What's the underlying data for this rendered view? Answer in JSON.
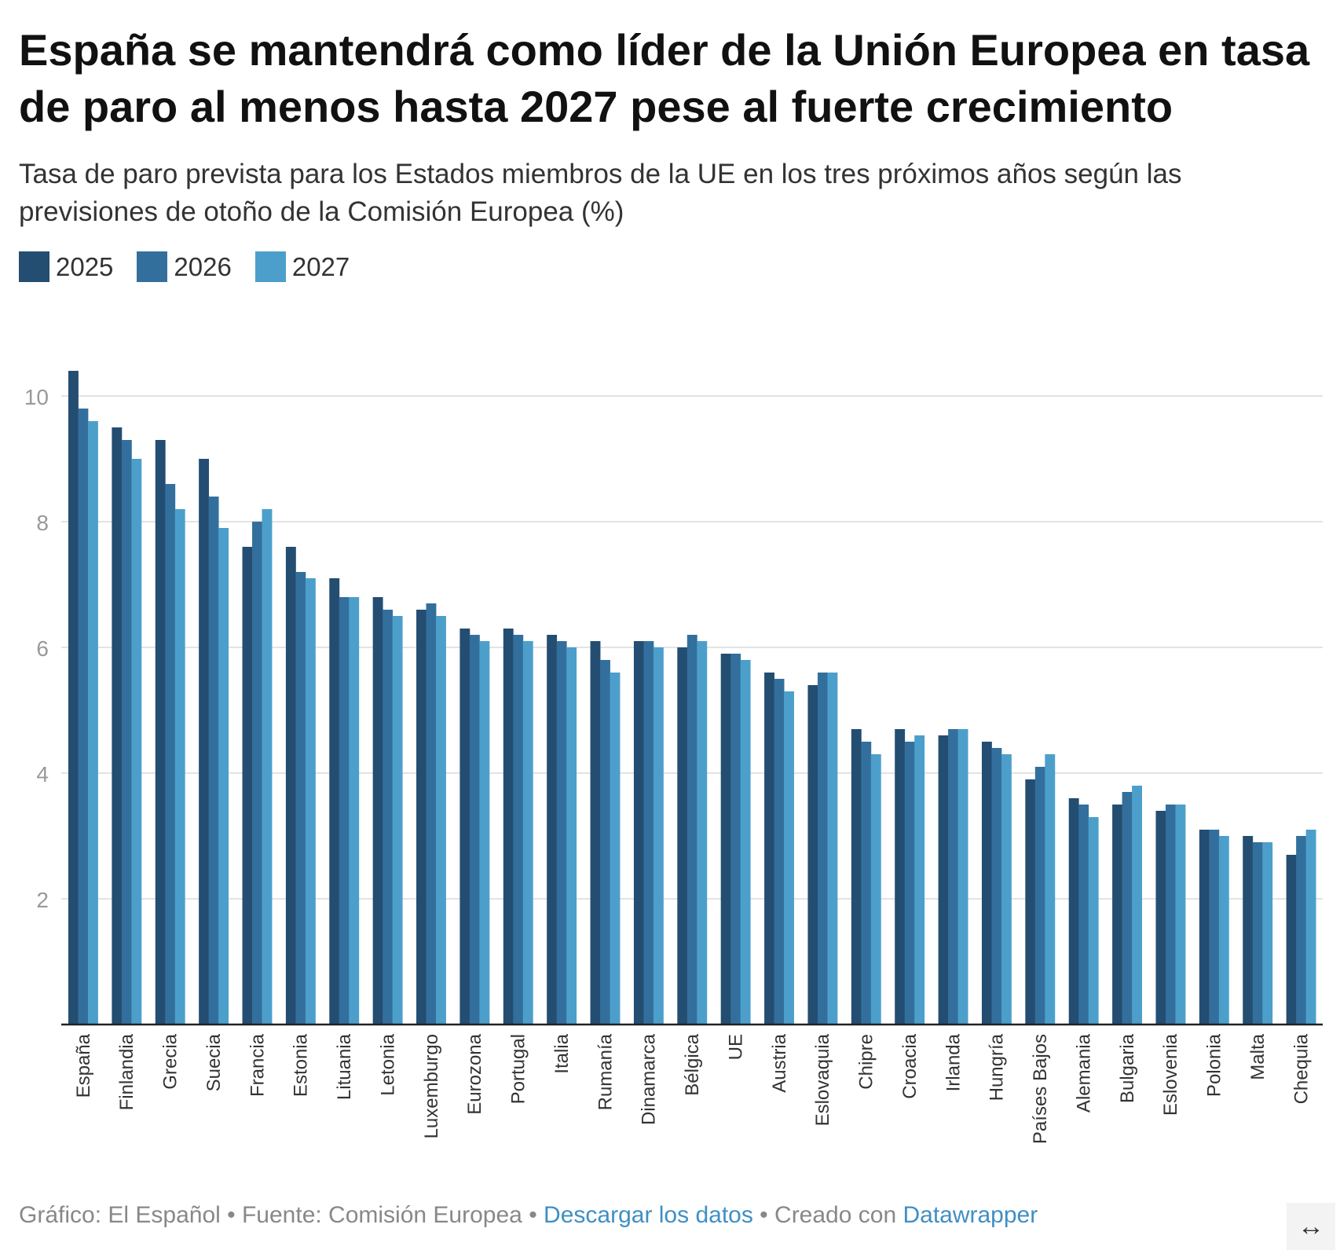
{
  "title": "España se mantendrá como líder de la Unión Europea en tasa de paro al menos hasta 2027 pese al fuerte crecimiento",
  "subtitle": "Tasa de paro prevista para los Estados miembros de la UE en los tres próximos años según las previsiones de otoño de la Comisión Europea (%)",
  "footer": {
    "credit": "Gráfico: El Español",
    "sep1": " • ",
    "source": "Fuente: Comisión Europea",
    "sep2": " • ",
    "download": "Descargar los datos",
    "sep3": " • ",
    "created": "Creado con ",
    "tool": "Datawrapper"
  },
  "expand_icon": "↔",
  "colors": {
    "2025": "#244d72",
    "2026": "#336f9d",
    "2027": "#4c9fcb",
    "grid": "#e3e3e3",
    "axis": "#222222",
    "tick": "#999999",
    "link": "#3f8fc4"
  },
  "chart_data": {
    "type": "bar",
    "categories": [
      "España",
      "Finlandia",
      "Grecia",
      "Suecia",
      "Francia",
      "Estonia",
      "Lituania",
      "Letonia",
      "Luxemburgo",
      "Eurozona",
      "Portugal",
      "Italia",
      "Rumanía",
      "Dinamarca",
      "Bélgica",
      "UE",
      "Austria",
      "Eslovaquia",
      "Chipre",
      "Croacia",
      "Irlanda",
      "Hungría",
      "Países Bajos",
      "Alemania",
      "Bulgaria",
      "Eslovenia",
      "Polonia",
      "Malta",
      "Chequia"
    ],
    "series": [
      {
        "name": "2025",
        "values": [
          10.4,
          9.5,
          9.3,
          9.0,
          7.6,
          7.6,
          7.1,
          6.8,
          6.6,
          6.3,
          6.3,
          6.2,
          6.1,
          6.1,
          6.0,
          5.9,
          5.6,
          5.4,
          4.7,
          4.7,
          4.6,
          4.5,
          3.9,
          3.6,
          3.5,
          3.4,
          3.1,
          3.0,
          2.7
        ]
      },
      {
        "name": "2026",
        "values": [
          9.8,
          9.3,
          8.6,
          8.4,
          8.0,
          7.2,
          6.8,
          6.6,
          6.7,
          6.2,
          6.2,
          6.1,
          5.8,
          6.1,
          6.2,
          5.9,
          5.5,
          5.6,
          4.5,
          4.5,
          4.7,
          4.4,
          4.1,
          3.5,
          3.7,
          3.5,
          3.1,
          2.9,
          3.0
        ]
      },
      {
        "name": "2027",
        "values": [
          9.6,
          9.0,
          8.2,
          7.9,
          8.2,
          7.1,
          6.8,
          6.5,
          6.5,
          6.1,
          6.1,
          6.0,
          5.6,
          6.0,
          6.1,
          5.8,
          5.3,
          5.6,
          4.3,
          4.6,
          4.7,
          4.3,
          4.3,
          3.3,
          3.8,
          3.5,
          3.0,
          2.9,
          3.1
        ]
      }
    ],
    "yticks": [
      2,
      4,
      6,
      8,
      10
    ],
    "ylim": [
      0,
      10.4
    ],
    "grid": true,
    "legend_position": "top-left"
  }
}
